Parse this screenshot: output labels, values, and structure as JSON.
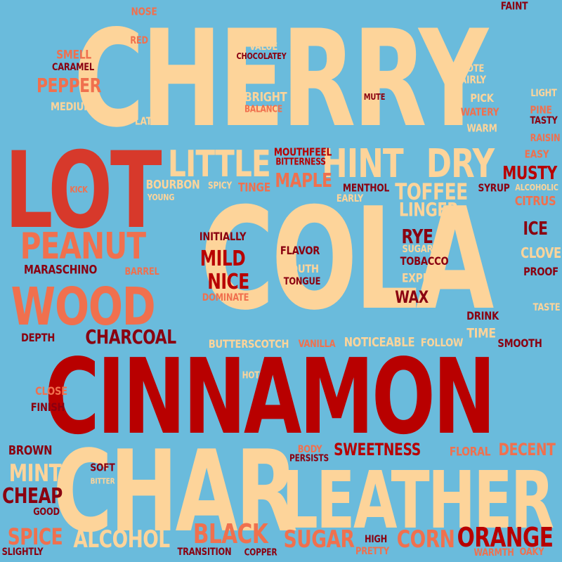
{
  "colors": {
    "background": "#6abbdc",
    "cream": "#fdd49a",
    "orange": "#f0704e",
    "red": "#d7392b",
    "darkred": "#b80000",
    "maroon": "#8a0010"
  },
  "words": {
    "cherry": "CHERRY",
    "cola": "COLA",
    "cinnamon": "CINNAMON",
    "char": "CHAR",
    "leather": "LEATHER",
    "lot": "LOT",
    "wood": "WOOD",
    "peanut": "PEANUT",
    "little": "LITTLE",
    "hint": "HINT",
    "dry": "DRY",
    "toffee": "TOFFEE",
    "linger": "LINGER",
    "musty": "MUSTY",
    "citrus": "CITRUS",
    "ice": "ICE",
    "clove": "CLOVE",
    "proof": "PROOF",
    "taste": "TASTE",
    "rye": "RYE",
    "tobacco": "TOBACCO",
    "sugary": "SUGARY",
    "expect": "EXPECT",
    "wax": "WAX",
    "drink": "DRINK",
    "time": "TIME",
    "smooth": "SMOOTH",
    "follow": "FOLLOW",
    "noticeable": "NOTICEABLE",
    "vanilla": "VANILLA",
    "butterscotch": "BUTTERSCOTCH",
    "charcoal": "CHARCOAL",
    "depth": "DEPTH",
    "maraschino": "MARASCHINO",
    "barrel": "BARREL",
    "mild": "MILD",
    "nice": "NICE",
    "dominate": "DOMINATE",
    "initially": "INITIALLY",
    "flavor": "FLAVOR",
    "mouth": "MOUTH",
    "tongue": "TONGUE",
    "kick": "KICK",
    "bourbon": "BOURBON",
    "young": "YOUNG",
    "spicy": "SPICY",
    "tinge": "TINGE",
    "mouthfeel": "MOUTHFEEL",
    "bitterness": "BITTERNESS",
    "maple": "MAPLE",
    "menthol": "MENTHOL",
    "early": "EARLY",
    "syrup": "SYRUP",
    "alcoholic": "ALCOHOLIC",
    "easy": "EASY",
    "raisin": "RAISIN",
    "tasty": "TASTY",
    "pine": "PINE",
    "light": "LIGHT",
    "warm": "WARM",
    "watery": "WATERY",
    "pick": "PICK",
    "fairly": "FAIRLY",
    "note": "NOTE",
    "bit": "BIT",
    "mute": "MUTE",
    "faint": "FAINT",
    "nose": "NOSE",
    "red": "RED",
    "value": "VALUE",
    "chocolatey": "CHOCOLATEY",
    "smell": "SMELL",
    "caramel": "CARAMEL",
    "pepper": "PEPPER",
    "medium": "MEDIUM",
    "bright": "BRIGHT",
    "balance": "BALANCE",
    "late": "LATE",
    "hot": "HOT",
    "close": "CLOSE",
    "finish": "FINISH",
    "brown": "BROWN",
    "mint": "MINT",
    "soft": "SOFT",
    "bitter": "BITTER",
    "cheap": "CHEAP",
    "good": "GOOD",
    "spice": "SPICE",
    "slightly": "SLIGHTLY",
    "alcohol": "ALCOHOL",
    "black": "BLACK",
    "transition": "TRANSITION",
    "copper": "COPPER",
    "sugar": "SUGAR",
    "high": "HIGH",
    "pretty": "PRETTY",
    "corn": "CORN",
    "orange": "ORANGE",
    "warmth": "WARMTH",
    "oaky": "OAKY",
    "body": "BODY",
    "persists": "PERSISTS",
    "sweetness": "SWEETNESS",
    "floral": "FLORAL",
    "decent": "DECENT"
  }
}
